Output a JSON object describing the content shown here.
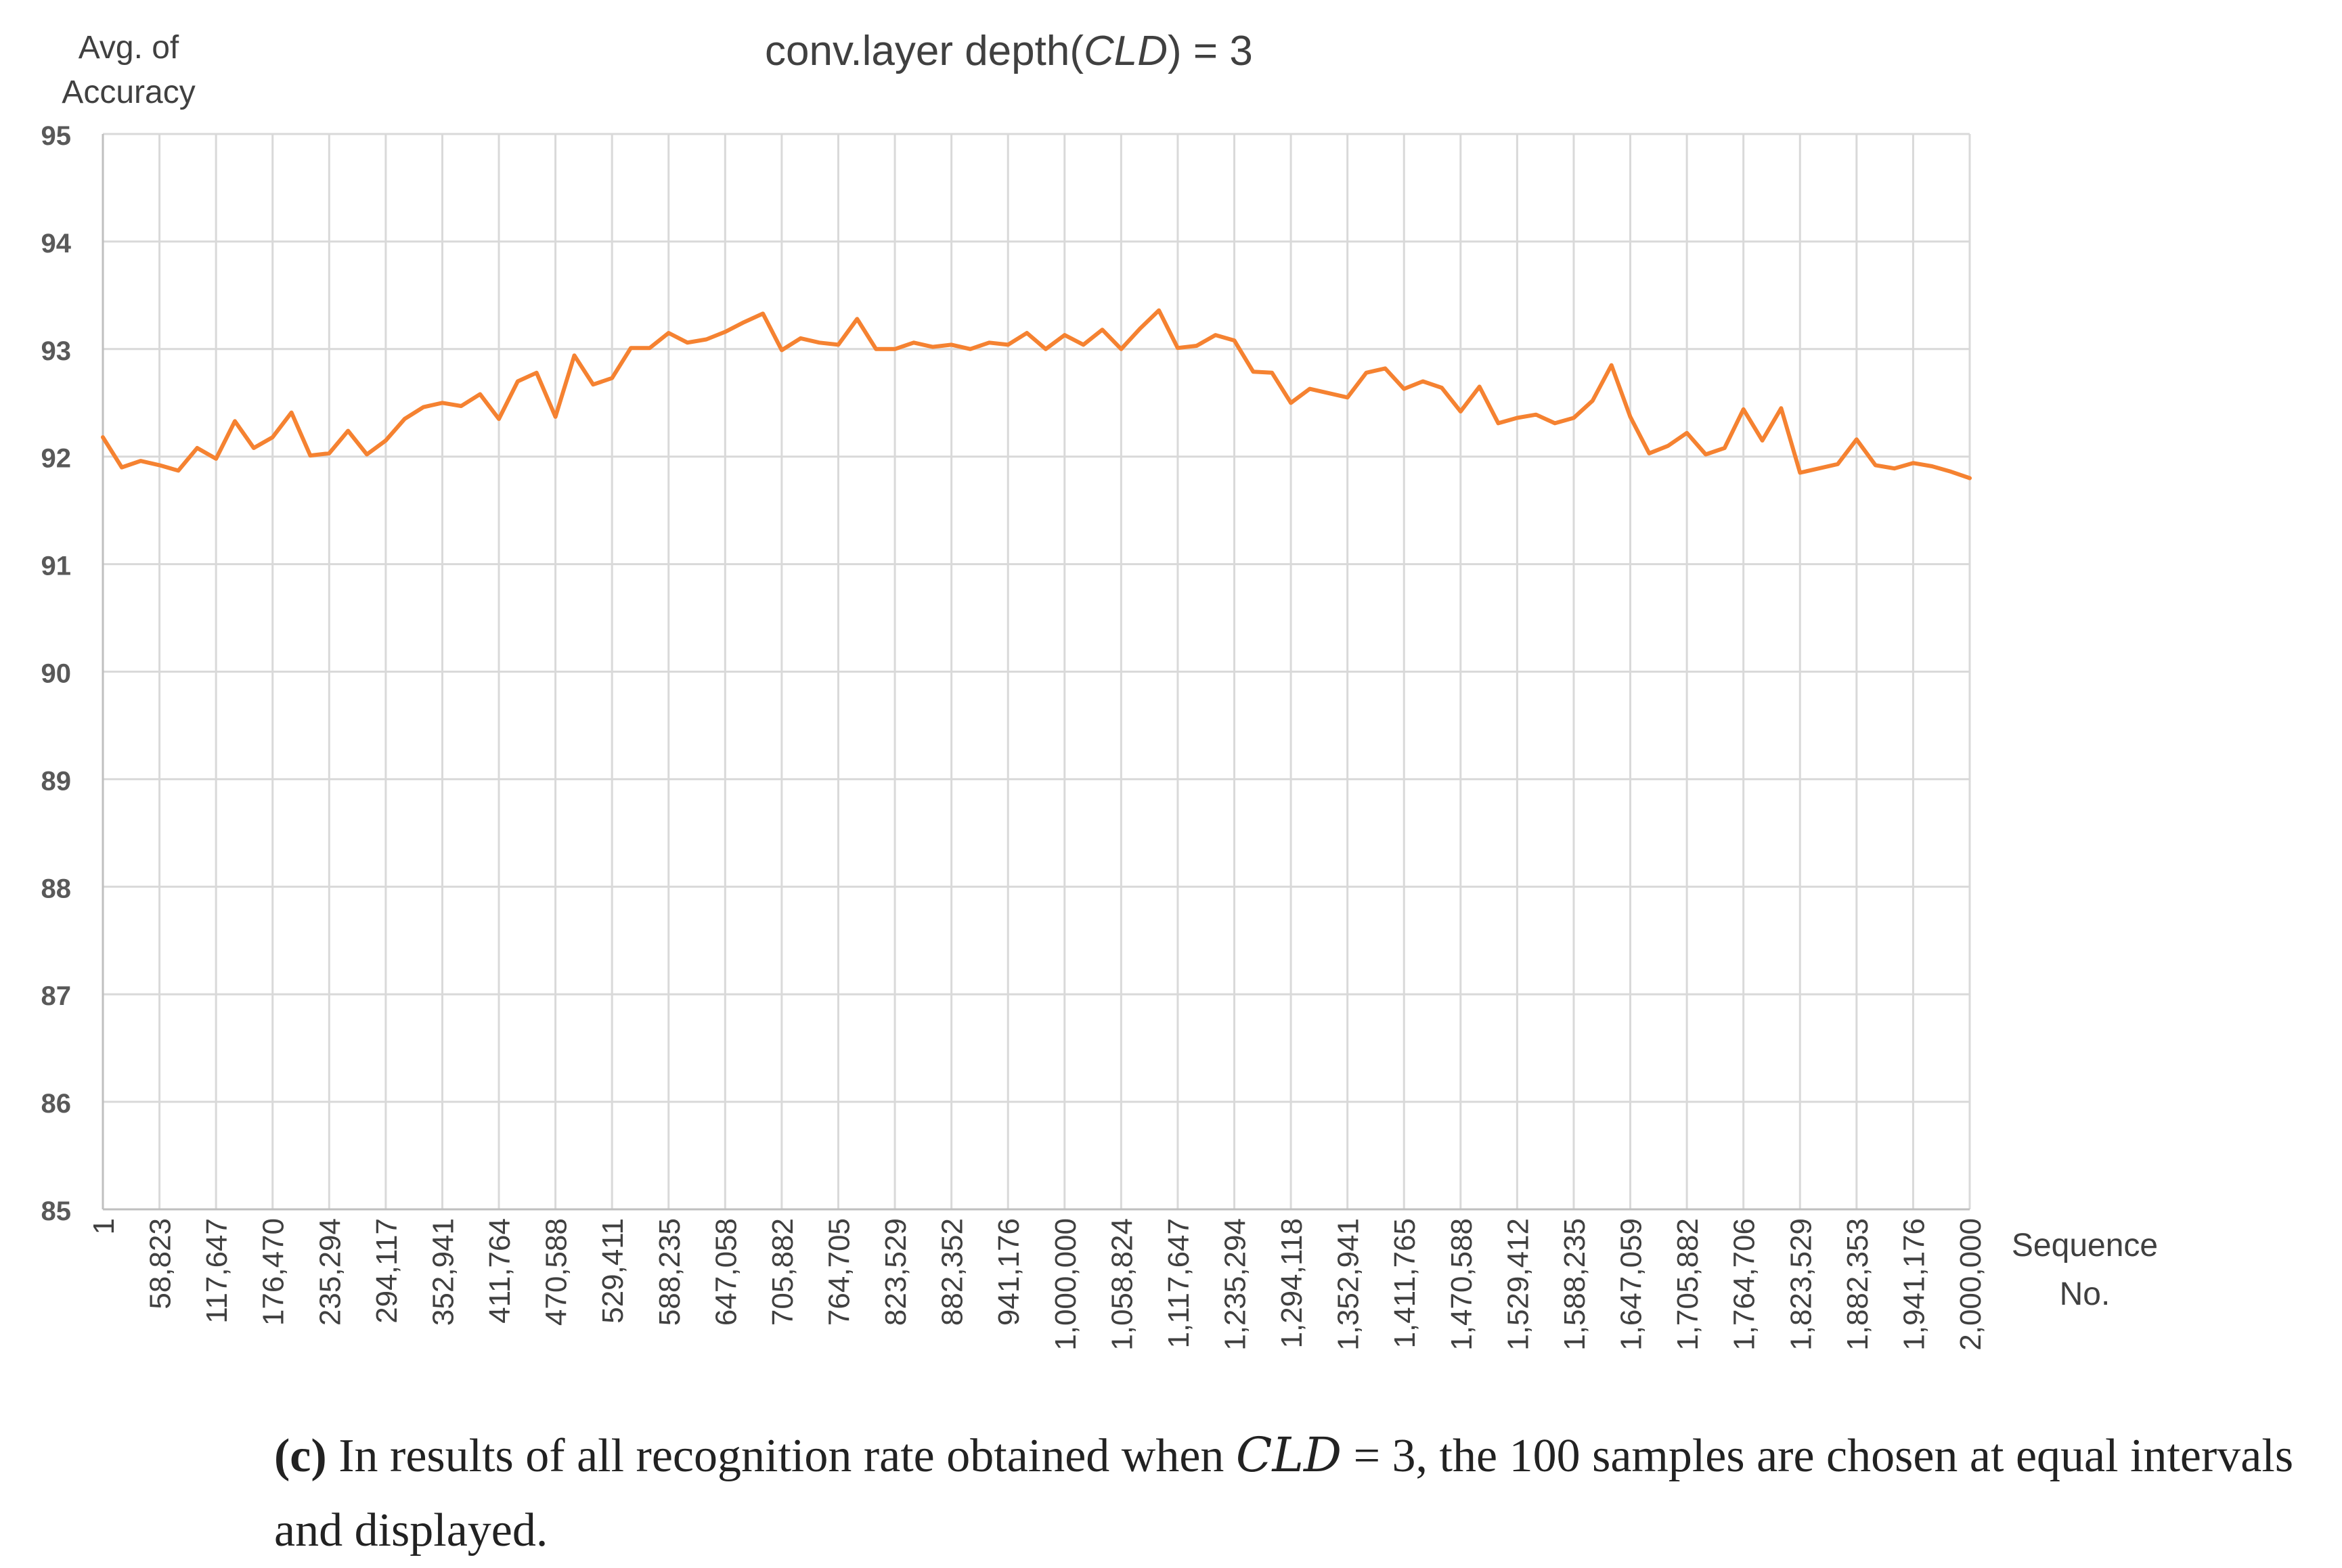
{
  "chart_data": {
    "type": "line",
    "title": "conv.layer depth(CLD) = 3",
    "title_prefix": "conv.layer depth(",
    "title_var": "CLD",
    "title_suffix": ") = 3",
    "ylabel_line1": "Avg. of",
    "ylabel_line2": "Accuracy",
    "xlabel_line1": "Sequence",
    "xlabel_line2": "No.",
    "ylim": [
      85,
      95
    ],
    "yticks": [
      "95",
      "94",
      "93",
      "92",
      "91",
      "90",
      "89",
      "88",
      "87",
      "86",
      "85"
    ],
    "grid": true,
    "x_tick_labels": [
      "1",
      "58,823",
      "117,647",
      "176,470",
      "235,294",
      "294,117",
      "352,941",
      "411,764",
      "470,588",
      "529,411",
      "588,235",
      "647,058",
      "705,882",
      "764,705",
      "823,529",
      "882,352",
      "941,176",
      "1,000,000",
      "1,058,824",
      "1,117,647",
      "1,235,294",
      "1,294,118",
      "1,352,941",
      "1,411,765",
      "1,470,588",
      "1,529,412",
      "1,588,235",
      "1,647,059",
      "1,705,882",
      "1,764,706",
      "1,823,529",
      "1,882,353",
      "1,941,176",
      "2,000,000"
    ],
    "series": [
      {
        "name": "Avg. of Accuracy",
        "color": "#F58231",
        "values": [
          92.18,
          91.9,
          91.96,
          91.92,
          91.87,
          92.08,
          91.98,
          92.33,
          92.08,
          92.18,
          92.41,
          92.01,
          92.03,
          92.24,
          92.02,
          92.15,
          92.35,
          92.46,
          92.5,
          92.47,
          92.58,
          92.35,
          92.7,
          92.78,
          92.37,
          92.94,
          92.67,
          92.73,
          93.01,
          93.01,
          93.15,
          93.06,
          93.09,
          93.16,
          93.25,
          93.33,
          92.99,
          93.1,
          93.06,
          93.04,
          93.28,
          93.0,
          93.0,
          93.06,
          93.02,
          93.04,
          93.0,
          93.06,
          93.04,
          93.15,
          93.0,
          93.13,
          93.04,
          93.18,
          93.0,
          93.19,
          93.36,
          93.01,
          93.03,
          93.13,
          93.08,
          92.79,
          92.78,
          92.5,
          92.63,
          92.59,
          92.55,
          92.78,
          92.82,
          92.63,
          92.7,
          92.64,
          92.42,
          92.65,
          92.31,
          92.36,
          92.39,
          92.31,
          92.36,
          92.52,
          92.85,
          92.37,
          92.03,
          92.1,
          92.22,
          92.02,
          92.08,
          92.44,
          92.15,
          92.45,
          91.85,
          91.89,
          91.93,
          92.16,
          91.92,
          91.89,
          91.94,
          91.91,
          91.86,
          91.8
        ]
      }
    ]
  },
  "caption": {
    "label": "(c)",
    "text_before": "In results of all recognition rate obtained when",
    "var": "CLD",
    "text_after": "= 3, the 100 samples are chosen at equal intervals and displayed."
  }
}
